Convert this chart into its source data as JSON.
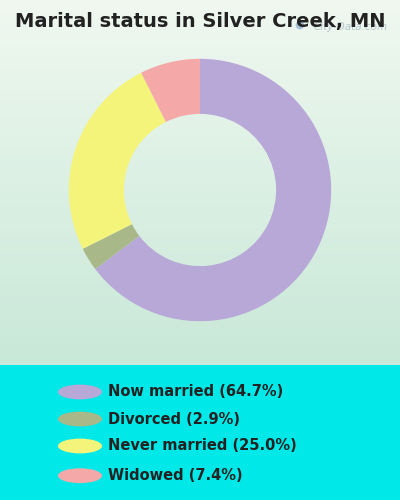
{
  "title": "Marital status in Silver Creek, MN",
  "slices": [
    64.7,
    2.9,
    25.0,
    7.4
  ],
  "labels": [
    "Now married (64.7%)",
    "Divorced (2.9%)",
    "Never married (25.0%)",
    "Widowed (7.4%)"
  ],
  "colors": [
    "#b8a8d8",
    "#a8b888",
    "#f4f47a",
    "#f4a8a8"
  ],
  "start_angle": 90,
  "donut_width": 0.42,
  "background_cyan": "#00e8e8",
  "chart_bg_topleft": "#e8f5e8",
  "chart_bg_topright": "#f0f0f0",
  "chart_bg_bottom": "#d0ede0",
  "title_fontsize": 14,
  "legend_fontsize": 10.5,
  "watermark": "City-Data.com"
}
